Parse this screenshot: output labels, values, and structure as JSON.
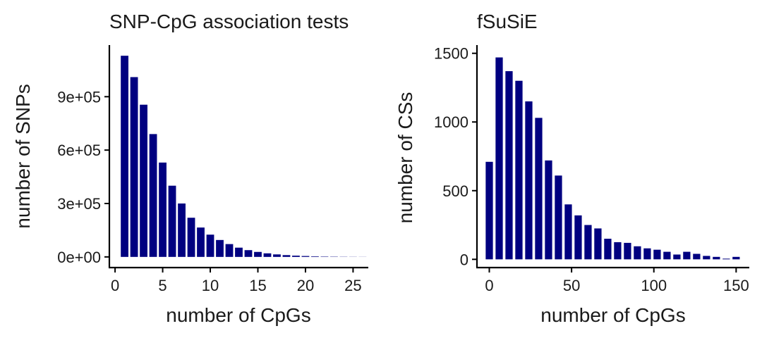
{
  "chart_data": [
    {
      "type": "bar",
      "title": "SNP-CpG association tests",
      "xlabel": "number of CpGs",
      "ylabel": "number of SNPs",
      "color": "#000080",
      "xlim": [
        -0.6,
        26.6
      ],
      "ylim": [
        -60000,
        1190000
      ],
      "xticks": [
        0,
        5,
        10,
        15,
        20,
        25
      ],
      "xtick_labels": [
        "0",
        "5",
        "10",
        "15",
        "20",
        "25"
      ],
      "yticks": [
        0,
        300000,
        600000,
        900000
      ],
      "ytick_labels": [
        "0e+00",
        "3e+05",
        "6e+05",
        "9e+05"
      ],
      "bar_width": 0.8,
      "x": [
        1,
        2,
        3,
        4,
        5,
        6,
        7,
        8,
        9,
        10,
        11,
        12,
        13,
        14,
        15,
        16,
        17,
        18,
        19,
        20,
        21,
        22,
        23,
        24,
        25,
        26
      ],
      "values": [
        1130000,
        1010000,
        855000,
        690000,
        530000,
        400000,
        300000,
        220000,
        165000,
        125000,
        95000,
        72000,
        52000,
        38000,
        28000,
        20000,
        14000,
        10000,
        7000,
        5000,
        3000,
        2000,
        1500,
        1000,
        700,
        500
      ]
    },
    {
      "type": "bar",
      "title": "fSuSiE",
      "xlabel": "number of CpGs",
      "ylabel": "number of CSs",
      "color": "#000080",
      "xlim": [
        -7.5,
        158
      ],
      "ylim": [
        -60,
        1560
      ],
      "xticks": [
        0,
        50,
        100,
        150
      ],
      "xtick_labels": [
        "0",
        "50",
        "100",
        "150"
      ],
      "yticks": [
        0,
        500,
        1000,
        1500
      ],
      "ytick_labels": [
        "0",
        "500",
        "1000",
        "1500"
      ],
      "bar_width": 4.4,
      "x": [
        0,
        6,
        12,
        18,
        24,
        30,
        36,
        42,
        48,
        54,
        60,
        66,
        72,
        78,
        84,
        90,
        96,
        102,
        108,
        114,
        120,
        126,
        132,
        138,
        144,
        150
      ],
      "values": [
        710,
        1470,
        1370,
        1300,
        1150,
        1030,
        720,
        610,
        400,
        320,
        250,
        225,
        150,
        125,
        120,
        95,
        80,
        70,
        55,
        35,
        55,
        40,
        25,
        18,
        5,
        18
      ]
    }
  ]
}
